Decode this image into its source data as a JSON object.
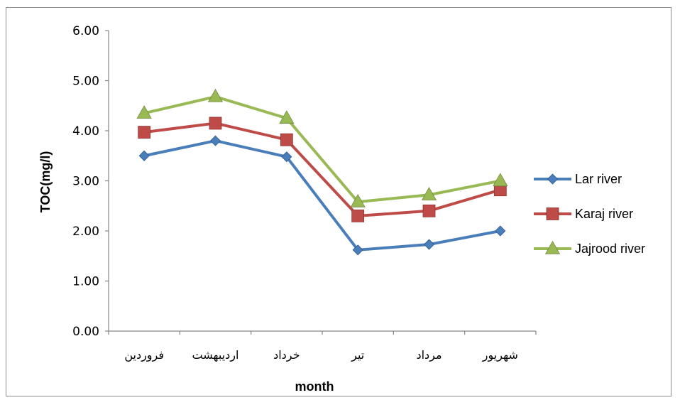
{
  "chart_data": {
    "type": "line",
    "title": "",
    "xlabel": "month",
    "ylabel": "TOC(mg/l)",
    "categories": [
      "فروردین",
      "اردیبهشت",
      "خرداد",
      "تیر",
      "مرداد",
      "شهریور"
    ],
    "yticks": [
      "0.00",
      "1.00",
      "2.00",
      "3.00",
      "4.00",
      "5.00",
      "6.00"
    ],
    "ylim": [
      0,
      6
    ],
    "grid": false,
    "legend_position": "right",
    "series": [
      {
        "name": "Lar river",
        "color": "#4a7ebb",
        "marker": "diamond",
        "values": [
          3.5,
          3.8,
          3.48,
          1.62,
          1.73,
          2.0
        ]
      },
      {
        "name": "Karaj river",
        "color": "#be4b48",
        "marker": "square",
        "values": [
          3.97,
          4.15,
          3.82,
          2.3,
          2.4,
          2.82
        ]
      },
      {
        "name": "Jajrood river",
        "color": "#98b954",
        "marker": "triangle",
        "values": [
          4.35,
          4.68,
          4.25,
          2.58,
          2.72,
          3.0
        ]
      }
    ]
  }
}
